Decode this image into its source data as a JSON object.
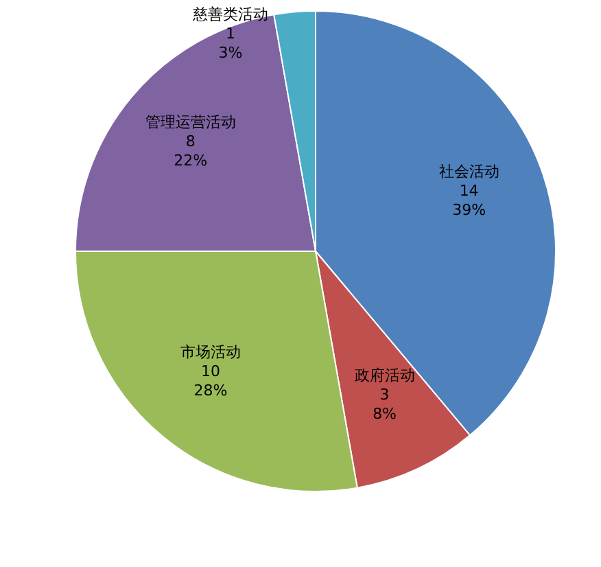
{
  "chart_data": {
    "type": "pie",
    "categories": [
      "社会活动",
      "政府活动",
      "市场活动",
      "管理运营活动",
      "慈善类活动"
    ],
    "values": [
      14,
      3,
      10,
      8,
      1
    ],
    "value_labels": [
      "14\n39%",
      "3\n8%",
      "10\n28%",
      "8\n22%",
      "1\n3%"
    ],
    "colors": [
      "#4f81bd",
      "#c0504d",
      "#9bbb59",
      "#8064a2",
      "#4bacc6"
    ]
  }
}
